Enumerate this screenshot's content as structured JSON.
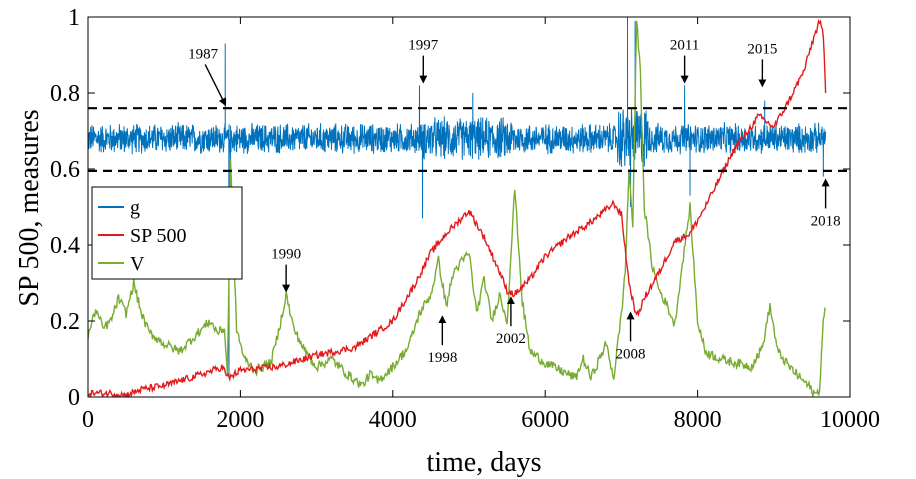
{
  "chart_data": {
    "type": "line",
    "title": "",
    "xlabel": "time, days",
    "ylabel": "SP 500, measures",
    "xlim": [
      0,
      10000
    ],
    "ylim": [
      0,
      1
    ],
    "xticks": [
      0,
      2000,
      4000,
      6000,
      8000,
      10000
    ],
    "yticks": [
      0,
      0.2,
      0.4,
      0.6,
      0.8,
      1
    ],
    "xtick_labels": [
      "0",
      "2000",
      "4000",
      "6000",
      "8000",
      "10000"
    ],
    "ytick_labels": [
      "0",
      "0.2",
      "0.4",
      "0.6",
      "0.8",
      "1"
    ],
    "grid": false,
    "legend_position": "left",
    "thresholds": [
      0.76,
      0.595
    ],
    "series": [
      {
        "name": "g",
        "color": "#0072BD",
        "baseline": 0.68,
        "noise_amplitude": 0.045,
        "spikes": [
          [
            1800,
            0.93
          ],
          [
            1850,
            0.05
          ],
          [
            1870,
            0.46
          ],
          [
            4350,
            0.82
          ],
          [
            4390,
            0.47
          ],
          [
            5050,
            0.8
          ],
          [
            7080,
            1.0
          ],
          [
            7120,
            0.5
          ],
          [
            7180,
            0.99
          ],
          [
            7830,
            0.82
          ],
          [
            7900,
            0.53
          ],
          [
            8880,
            0.78
          ],
          [
            9650,
            0.58
          ]
        ]
      },
      {
        "name": "SP 500",
        "color": "#E31A1C",
        "x": [
          0,
          300,
          500,
          700,
          1000,
          1500,
          1780,
          1800,
          1850,
          2000,
          2500,
          3000,
          3500,
          4000,
          4300,
          4500,
          4700,
          4900,
          5000,
          5200,
          5400,
          5500,
          5600,
          5800,
          6000,
          6300,
          6600,
          6900,
          7000,
          7100,
          7200,
          7300,
          7500,
          7700,
          7900,
          8100,
          8300,
          8500,
          8700,
          8800,
          9000,
          9200,
          9400,
          9500,
          9600,
          9650,
          9680
        ],
        "y": [
          0.01,
          0.01,
          0.005,
          0.02,
          0.03,
          0.06,
          0.08,
          0.06,
          0.05,
          0.07,
          0.08,
          0.11,
          0.13,
          0.2,
          0.3,
          0.38,
          0.43,
          0.47,
          0.49,
          0.42,
          0.33,
          0.28,
          0.27,
          0.31,
          0.37,
          0.42,
          0.46,
          0.51,
          0.48,
          0.3,
          0.21,
          0.26,
          0.33,
          0.41,
          0.43,
          0.5,
          0.58,
          0.66,
          0.71,
          0.74,
          0.71,
          0.78,
          0.86,
          0.93,
          0.99,
          0.95,
          0.8
        ]
      },
      {
        "name": "V",
        "color": "#77AC30",
        "x": [
          0,
          100,
          200,
          300,
          400,
          500,
          600,
          700,
          800,
          1000,
          1200,
          1400,
          1600,
          1700,
          1790,
          1830,
          1870,
          1950,
          2050,
          2200,
          2400,
          2500,
          2600,
          2700,
          2850,
          3000,
          3200,
          3400,
          3600,
          3700,
          3800,
          4000,
          4200,
          4350,
          4500,
          4600,
          4700,
          4800,
          5000,
          5100,
          5200,
          5300,
          5400,
          5500,
          5600,
          5700,
          5800,
          6000,
          6200,
          6400,
          6500,
          6600,
          6800,
          6900,
          7000,
          7050,
          7100,
          7150,
          7200,
          7250,
          7300,
          7400,
          7500,
          7600,
          7700,
          7800,
          7900,
          8000,
          8100,
          8300,
          8500,
          8700,
          8850,
          8950,
          9050,
          9200,
          9350,
          9450,
          9550,
          9600,
          9650,
          9680
        ],
        "y": [
          0.16,
          0.23,
          0.18,
          0.2,
          0.26,
          0.22,
          0.3,
          0.22,
          0.17,
          0.14,
          0.12,
          0.16,
          0.2,
          0.17,
          0.18,
          0.06,
          0.62,
          0.18,
          0.1,
          0.07,
          0.09,
          0.17,
          0.27,
          0.18,
          0.12,
          0.08,
          0.1,
          0.06,
          0.03,
          0.06,
          0.04,
          0.08,
          0.13,
          0.22,
          0.27,
          0.36,
          0.24,
          0.33,
          0.38,
          0.22,
          0.31,
          0.2,
          0.27,
          0.2,
          0.55,
          0.25,
          0.12,
          0.09,
          0.07,
          0.05,
          0.1,
          0.05,
          0.14,
          0.05,
          0.22,
          0.33,
          0.6,
          0.45,
          1.0,
          0.85,
          0.5,
          0.35,
          0.28,
          0.24,
          0.19,
          0.35,
          0.5,
          0.2,
          0.12,
          0.1,
          0.09,
          0.08,
          0.13,
          0.24,
          0.12,
          0.08,
          0.05,
          0.03,
          0.005,
          0.02,
          0.2,
          0.23
        ]
      }
    ],
    "annotations": [
      {
        "text": "1987",
        "x": 1800,
        "y": 0.77,
        "direction": "down-right"
      },
      {
        "text": "1997",
        "x": 4400,
        "y": 0.83,
        "direction": "down"
      },
      {
        "text": "2011",
        "x": 7830,
        "y": 0.83,
        "direction": "down"
      },
      {
        "text": "2015",
        "x": 8850,
        "y": 0.82,
        "direction": "down"
      },
      {
        "text": "1990",
        "x": 2600,
        "y": 0.28,
        "direction": "down"
      },
      {
        "text": "2018",
        "x": 9680,
        "y": 0.57,
        "direction": "up"
      },
      {
        "text": "1998",
        "x": 4650,
        "y": 0.21,
        "direction": "up"
      },
      {
        "text": "2002",
        "x": 5550,
        "y": 0.26,
        "direction": "up"
      },
      {
        "text": "2008",
        "x": 7120,
        "y": 0.22,
        "direction": "up"
      }
    ]
  }
}
